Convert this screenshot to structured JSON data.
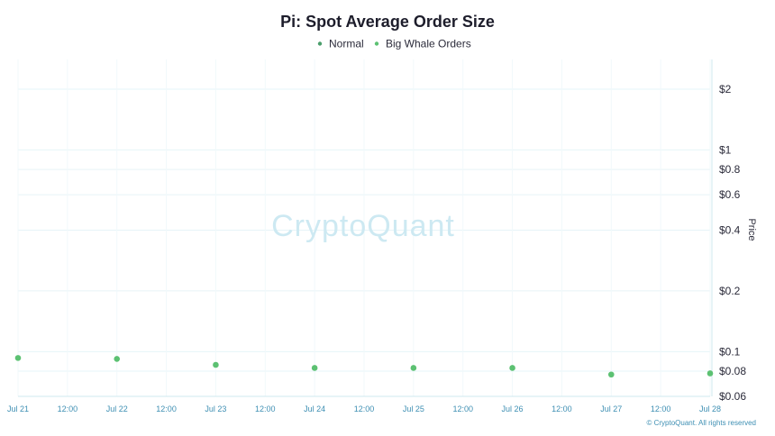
{
  "chart_data": {
    "type": "scatter",
    "title": "Pi: Spot Average Order Size",
    "ylabel": "Price",
    "yscale": "log",
    "ylim": [
      0.06,
      2.6
    ],
    "grid": true,
    "legend_position": "top-center",
    "x_ticks": [
      "Jul 21",
      "12:00",
      "Jul 22",
      "12:00",
      "Jul 23",
      "12:00",
      "Jul 24",
      "12:00",
      "Jul 25",
      "12:00",
      "Jul 26",
      "12:00",
      "Jul 27",
      "12:00",
      "Jul 28"
    ],
    "y_ticks": [
      {
        "value": 2,
        "label": "$2"
      },
      {
        "value": 1,
        "label": "$1"
      },
      {
        "value": 0.8,
        "label": "$0.8"
      },
      {
        "value": 0.6,
        "label": "$0.6"
      },
      {
        "value": 0.4,
        "label": "$0.4"
      },
      {
        "value": 0.2,
        "label": "$0.2"
      },
      {
        "value": 0.1,
        "label": "$0.1"
      },
      {
        "value": 0.08,
        "label": "$0.08"
      },
      {
        "value": 0.06,
        "label": "$0.06"
      }
    ],
    "series": [
      {
        "name": "Normal",
        "color": "#4a9e6b",
        "values": []
      },
      {
        "name": "Big Whale Orders",
        "color": "#5cc172",
        "x": [
          "Jul 21",
          "Jul 22",
          "Jul 23",
          "Jul 24",
          "Jul 25",
          "Jul 26",
          "Jul 27",
          "Jul 28"
        ],
        "values": [
          0.093,
          0.092,
          0.086,
          0.083,
          0.083,
          0.083,
          0.077,
          0.078
        ]
      }
    ]
  },
  "watermark": "CryptoQuant",
  "copyright": "© CryptoQuant. All rights reserved"
}
